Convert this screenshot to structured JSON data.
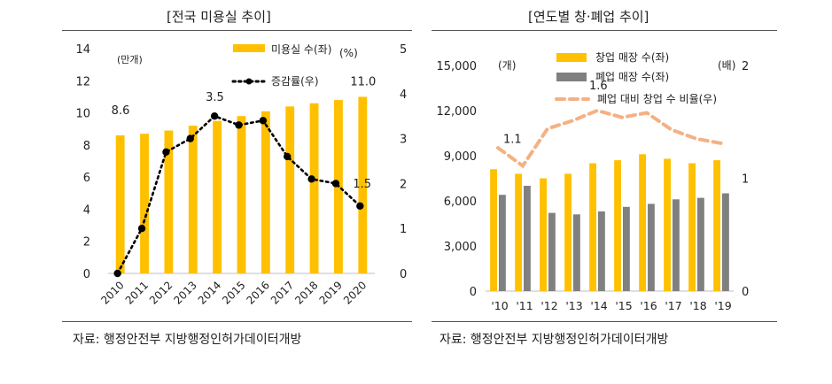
{
  "left": {
    "title": "[전국 미용실 추이]",
    "source": "자료: 행정안전부 지방행정인허가데이터개방",
    "chart_data": {
      "type": "bar+line",
      "title": "전국 미용실 추이",
      "x": [
        "2010",
        "2011",
        "2012",
        "2013",
        "2014",
        "2015",
        "2016",
        "2017",
        "2018",
        "2019",
        "2020"
      ],
      "series": [
        {
          "name": "미용실 수(좌)",
          "axis": "left",
          "kind": "bar",
          "color": "#FFC000",
          "values": [
            8.6,
            8.7,
            8.9,
            9.2,
            9.5,
            9.8,
            10.1,
            10.4,
            10.6,
            10.8,
            11.0
          ]
        },
        {
          "name": "증감률(우)",
          "axis": "right",
          "kind": "line",
          "color": "#000000",
          "values": [
            0.0,
            1.0,
            2.7,
            3.0,
            3.5,
            3.3,
            3.4,
            2.6,
            2.1,
            2.0,
            1.5
          ]
        }
      ],
      "ylim_left": [
        0,
        14
      ],
      "yticks_left": [
        0,
        2,
        4,
        6,
        8,
        10,
        12,
        14
      ],
      "ylim_right": [
        0,
        5
      ],
      "yticks_right": [
        0,
        1,
        2,
        3,
        4,
        5
      ],
      "ylabel_left": "(만개)",
      "ylabel_right": "(%)",
      "annotations": [
        {
          "series": 0,
          "index": 0,
          "text": "8.6"
        },
        {
          "series": 0,
          "index": 10,
          "text": "11.0"
        },
        {
          "series": 1,
          "index": 4,
          "text": "3.5"
        },
        {
          "series": 1,
          "index": 10,
          "text": "1.5"
        }
      ]
    }
  },
  "right": {
    "title": "[연도별 창·폐업 추이]",
    "source": "자료: 행정안전부 지방행정인허가데이터개방",
    "chart_data": {
      "type": "bar+line",
      "title": "연도별 창·폐업 추이",
      "x": [
        "'10",
        "'11",
        "'12",
        "'13",
        "'14",
        "'15",
        "'16",
        "'17",
        "'18",
        "'19"
      ],
      "series": [
        {
          "name": "창업 매장 수(좌)",
          "axis": "left",
          "kind": "bar",
          "color": "#FFC000",
          "values": [
            8100,
            7800,
            7500,
            7800,
            8500,
            8700,
            9100,
            8800,
            8500,
            8700
          ]
        },
        {
          "name": "폐업 매장 수(좌)",
          "axis": "left",
          "kind": "bar",
          "color": "#808080",
          "values": [
            6400,
            7000,
            5200,
            5100,
            5300,
            5600,
            5800,
            6100,
            6200,
            6500
          ]
        },
        {
          "name": "폐업 대비 창업 수 비율(우)",
          "axis": "right",
          "kind": "line",
          "color": "#F4B183",
          "values": [
            1.27,
            1.11,
            1.44,
            1.51,
            1.6,
            1.54,
            1.58,
            1.43,
            1.35,
            1.31
          ]
        }
      ],
      "ylim_left": [
        0,
        15000
      ],
      "yticks_left": [
        0,
        3000,
        6000,
        9000,
        12000,
        15000
      ],
      "yticklabels_left": [
        "0",
        "3,000",
        "6,000",
        "9,000",
        "12,000",
        "15,000"
      ],
      "ylim_right": [
        0,
        2
      ],
      "yticks_right": [
        0,
        1,
        2
      ],
      "ylabel_left": "(개)",
      "ylabel_right": "(배)",
      "annotations": [
        {
          "series": 2,
          "index": 1,
          "text": "1.1"
        },
        {
          "series": 2,
          "index": 4,
          "text": "1.6"
        }
      ]
    }
  }
}
